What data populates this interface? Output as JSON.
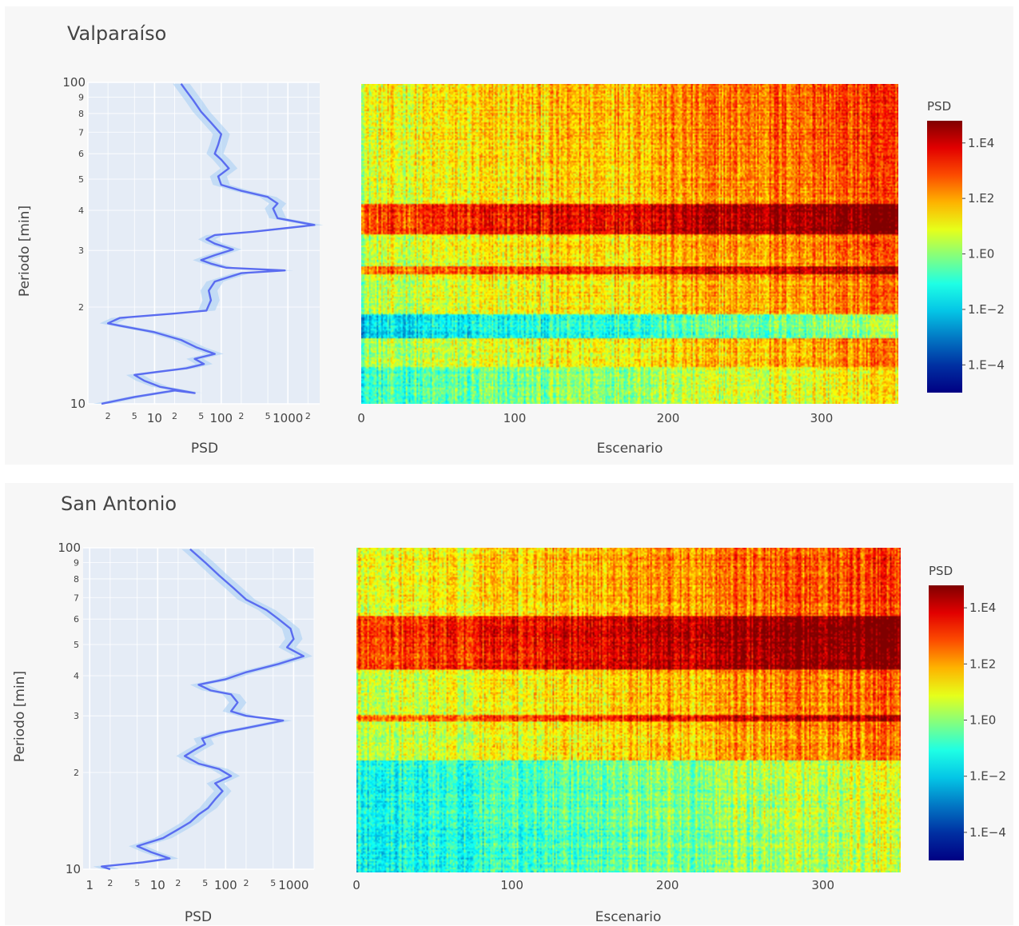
{
  "panels": [
    {
      "title": "Valparaíso",
      "profile": {
        "xlabel": "PSD",
        "ylabel": "Periodo [min]",
        "xscale": "log",
        "yscale": "log",
        "xlim": [
          1,
          3000
        ],
        "ylim": [
          10,
          100
        ],
        "xticks_major": [
          "10",
          "100",
          "1000"
        ],
        "xticks_minor": [
          "2",
          "5",
          "2",
          "5",
          "2",
          "5",
          "2"
        ],
        "yticks_major": [
          "10",
          "100"
        ],
        "yticks_minor": [
          "2",
          "3",
          "4",
          "5",
          "6",
          "7",
          "8",
          "9"
        ],
        "line_color": "#5a6cf0",
        "band_color": "#aad0f5",
        "points": [
          [
            1.6,
            10
          ],
          [
            5,
            10.5
          ],
          [
            20,
            11
          ],
          [
            40,
            10.8
          ],
          [
            12,
            11.3
          ],
          [
            7,
            11.8
          ],
          [
            5,
            12.3
          ],
          [
            12,
            12.6
          ],
          [
            30,
            12.9
          ],
          [
            55,
            13.3
          ],
          [
            40,
            13.8
          ],
          [
            80,
            14.3
          ],
          [
            42,
            15.0
          ],
          [
            25,
            15.8
          ],
          [
            10,
            16.7
          ],
          [
            3,
            17.5
          ],
          [
            2,
            17.8
          ],
          [
            3,
            18.5
          ],
          [
            20,
            19.1
          ],
          [
            60,
            19.5
          ],
          [
            70,
            21.0
          ],
          [
            65,
            22.5
          ],
          [
            80,
            24.0
          ],
          [
            200,
            25.5
          ],
          [
            900,
            26.0
          ],
          [
            120,
            26.5
          ],
          [
            70,
            27.3
          ],
          [
            50,
            28.0
          ],
          [
            80,
            29.0
          ],
          [
            150,
            30.2
          ],
          [
            80,
            31.5
          ],
          [
            60,
            32.5
          ],
          [
            80,
            33.5
          ],
          [
            300,
            34.3
          ],
          [
            2500,
            36.0
          ],
          [
            700,
            37.8
          ],
          [
            600,
            40.5
          ],
          [
            700,
            42.0
          ],
          [
            500,
            44.0
          ],
          [
            200,
            46.0
          ],
          [
            100,
            48.0
          ],
          [
            90,
            51.0
          ],
          [
            130,
            54.0
          ],
          [
            100,
            57.5
          ],
          [
            80,
            60.0
          ],
          [
            90,
            64.0
          ],
          [
            100,
            69.0
          ],
          [
            70,
            75.0
          ],
          [
            50,
            81.0
          ],
          [
            38,
            88.0
          ],
          [
            30,
            94.0
          ],
          [
            25,
            99.0
          ]
        ]
      },
      "heatmap": {
        "xlabel": "Escenario",
        "xticks": [
          "0",
          "100",
          "200",
          "300"
        ],
        "xlim": [
          0,
          350
        ],
        "ylim": [
          10,
          100
        ],
        "yscale": "log",
        "colorscale": "Jet",
        "colorbar_title": "PSD",
        "colorbar_ticks": [
          "1.E4",
          "1.E2",
          "1.E0",
          "1.E−2",
          "1.E−4"
        ],
        "colorbar_log_range": [
          -5,
          4.8
        ],
        "bands": [
          {
            "period": [
              34,
              42
            ],
            "boost": 2.2
          },
          {
            "period": [
              25.5,
              27
            ],
            "boost": 2.0
          },
          {
            "period": [
              16,
              19
            ],
            "boost": -2.2
          },
          {
            "period": [
              10,
              13
            ],
            "boost": -1.0
          }
        ]
      }
    },
    {
      "title": "San Antonio",
      "profile": {
        "xlabel": "PSD",
        "ylabel": "Periodo [min]",
        "xscale": "log",
        "yscale": "log",
        "xlim": [
          0.8,
          2000
        ],
        "ylim": [
          10,
          100
        ],
        "xticks_major": [
          "1",
          "10",
          "100",
          "1000"
        ],
        "xticks_minor": [
          "2",
          "5",
          "2",
          "5",
          "2",
          "5"
        ],
        "yticks_major": [
          "10",
          "100"
        ],
        "yticks_minor": [
          "2",
          "3",
          "4",
          "5",
          "6",
          "7",
          "8",
          "9"
        ],
        "line_color": "#5a6cf0",
        "band_color": "#aad0f5",
        "points": [
          [
            2,
            10
          ],
          [
            1.5,
            10.2
          ],
          [
            6,
            10.5
          ],
          [
            15,
            10.8
          ],
          [
            8,
            11.3
          ],
          [
            5,
            11.8
          ],
          [
            12,
            12.5
          ],
          [
            20,
            13.3
          ],
          [
            30,
            14.0
          ],
          [
            40,
            14.8
          ],
          [
            55,
            15.5
          ],
          [
            70,
            16.5
          ],
          [
            90,
            17.5
          ],
          [
            70,
            18.5
          ],
          [
            120,
            19.5
          ],
          [
            80,
            20.5
          ],
          [
            40,
            21.3
          ],
          [
            25,
            22.5
          ],
          [
            35,
            23.5
          ],
          [
            50,
            24.5
          ],
          [
            45,
            25.5
          ],
          [
            80,
            26.5
          ],
          [
            200,
            27.5
          ],
          [
            700,
            29.0
          ],
          [
            200,
            30.0
          ],
          [
            120,
            31.0
          ],
          [
            150,
            33.0
          ],
          [
            120,
            35.0
          ],
          [
            60,
            36.0
          ],
          [
            40,
            37.5
          ],
          [
            100,
            39.0
          ],
          [
            200,
            41.0
          ],
          [
            600,
            43.5
          ],
          [
            1400,
            46.0
          ],
          [
            800,
            49.0
          ],
          [
            1000,
            52.0
          ],
          [
            900,
            56.0
          ],
          [
            600,
            60.0
          ],
          [
            400,
            64.0
          ],
          [
            200,
            69.0
          ],
          [
            130,
            75.0
          ],
          [
            80,
            82.0
          ],
          [
            50,
            90.0
          ],
          [
            30,
            99.0
          ]
        ]
      },
      "heatmap": {
        "xlabel": "Escenario",
        "xticks": [
          "0",
          "100",
          "200",
          "300"
        ],
        "xlim": [
          0,
          350
        ],
        "ylim": [
          10,
          100
        ],
        "yscale": "log",
        "colorscale": "Jet",
        "colorbar_title": "PSD",
        "colorbar_ticks": [
          "1.E4",
          "1.E2",
          "1.E0",
          "1.E−2",
          "1.E−4"
        ],
        "colorbar_log_range": [
          -5,
          4.8
        ],
        "bands": [
          {
            "period": [
              42,
              62
            ],
            "boost": 2.2
          },
          {
            "period": [
              29,
              30.5
            ],
            "boost": 1.8
          },
          {
            "period": [
              10,
              22
            ],
            "boost": -1.6
          }
        ]
      }
    }
  ]
}
